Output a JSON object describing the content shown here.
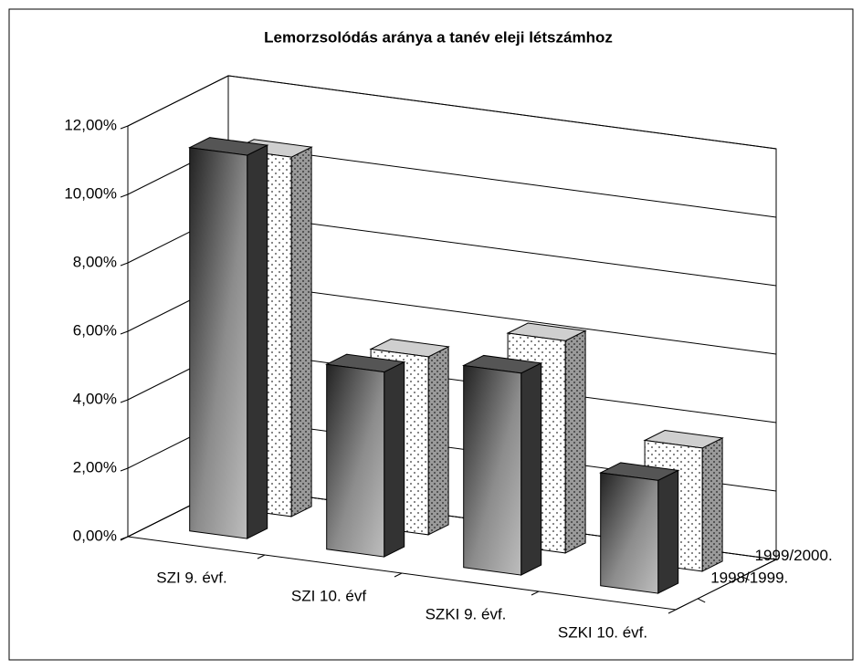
{
  "chart_data": {
    "type": "bar3d",
    "title": "Lemorzsolódás aránya a tanév eleji létszámhoz",
    "categories": [
      "SZI 9. évf.",
      "SZI 10. évf",
      "SZKI 9. évf.",
      "SZKI 10. évf."
    ],
    "series": [
      {
        "name": "1998/1999.",
        "color": "#7f7f7f",
        "values": [
          11.2,
          5.4,
          5.9,
          3.3
        ]
      },
      {
        "name": "1999/2000.",
        "color": "#ffffff",
        "values": [
          10.5,
          5.2,
          6.2,
          3.6
        ]
      }
    ],
    "ylim": [
      0,
      12
    ],
    "yticks": [
      {
        "value": 0,
        "label": "0,00%"
      },
      {
        "value": 2,
        "label": "2,00%"
      },
      {
        "value": 4,
        "label": "4,00%"
      },
      {
        "value": 6,
        "label": "6,00%"
      },
      {
        "value": 8,
        "label": "8,00%"
      },
      {
        "value": 10,
        "label": "10,00%"
      },
      {
        "value": 12,
        "label": "12,00%"
      }
    ],
    "grid": true
  }
}
